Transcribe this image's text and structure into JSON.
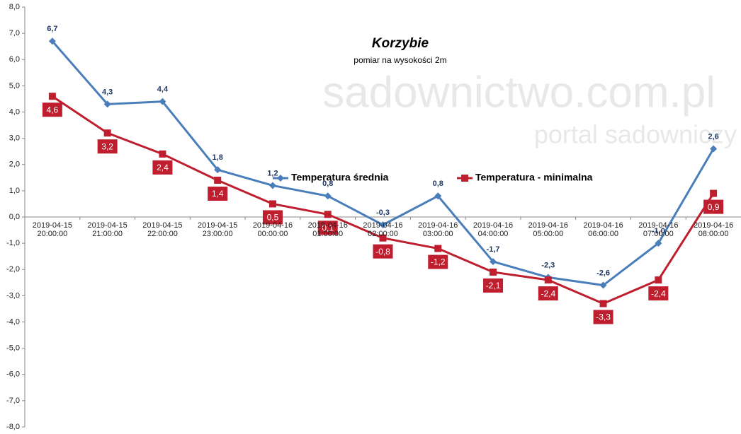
{
  "chart_data": {
    "type": "line",
    "title": "Korzybie",
    "subtitle": "pomiar na wysokości 2m",
    "watermark": [
      "sadownictwo.com.pl",
      "portal sadowniczy"
    ],
    "categories": [
      "2019-04-15 20:00:00",
      "2019-04-15 21:00:00",
      "2019-04-15 22:00:00",
      "2019-04-15 23:00:00",
      "2019-04-16 00:00:00",
      "2019-04-16 01:00:00",
      "2019-04-16 02:00:00",
      "2019-04-16 03:00:00",
      "2019-04-16 04:00:00",
      "2019-04-16 05:00:00",
      "2019-04-16 06:00:00",
      "2019-04-16 07:00:00",
      "2019-04-16 08:00:00"
    ],
    "series": [
      {
        "name": "Temperatura średnia",
        "color": "#4a7ebb",
        "marker": "diamond",
        "values": [
          6.7,
          4.3,
          4.4,
          1.8,
          1.2,
          0.8,
          -0.3,
          0.8,
          -1.7,
          -2.3,
          -2.6,
          -1.0,
          2.6
        ],
        "value_labels": [
          "6,7",
          "4,3",
          "4,4",
          "1,8",
          "1,2",
          "0,8",
          "-0,3",
          "0,8",
          "-1,7",
          "-2,3",
          "-2,6",
          "-1,0",
          "2,6"
        ]
      },
      {
        "name": "Temperatura - minimalna",
        "color": "#be1e2d",
        "marker": "square",
        "values": [
          4.6,
          3.2,
          2.4,
          1.4,
          0.5,
          0.1,
          -0.8,
          -1.2,
          -2.1,
          -2.4,
          -3.3,
          -2.4,
          0.9
        ],
        "value_labels": [
          "4,6",
          "3,2",
          "2,4",
          "1,4",
          "0,5",
          "0,1",
          "-0,8",
          "-1,2",
          "-2,1",
          "-2,4",
          "-3,3",
          "-2,4",
          "0,9"
        ]
      }
    ],
    "ylim": [
      -8,
      8
    ],
    "yticks": [
      {
        "value": 8,
        "label": "8,0"
      },
      {
        "value": 7,
        "label": "7,0"
      },
      {
        "value": 6,
        "label": "6,0"
      },
      {
        "value": 5,
        "label": "5,0"
      },
      {
        "value": 4,
        "label": "4,0"
      },
      {
        "value": 3,
        "label": "3,0"
      },
      {
        "value": 2,
        "label": "2,0"
      },
      {
        "value": 1,
        "label": "1,0"
      },
      {
        "value": 0,
        "label": "0,0"
      },
      {
        "value": -1,
        "label": "-1,0"
      },
      {
        "value": -2,
        "label": "-2,0"
      },
      {
        "value": -3,
        "label": "-3,0"
      },
      {
        "value": -4,
        "label": "-4,0"
      },
      {
        "value": -5,
        "label": "-5,0"
      },
      {
        "value": -6,
        "label": "-6,0"
      },
      {
        "value": -7,
        "label": "-7,0"
      },
      {
        "value": -8,
        "label": "-8,0"
      }
    ],
    "grid": false
  }
}
